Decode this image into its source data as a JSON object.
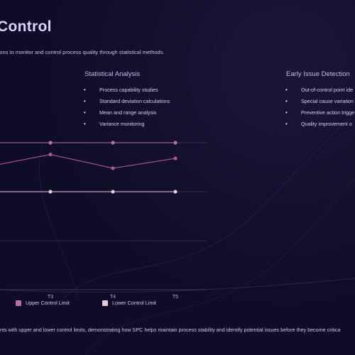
{
  "slide": {
    "title": "Control",
    "subtitle": "izations to monitor and control process quality through statistical methods.",
    "caption": "ents with upper and lower control limits, demonstrating how SPC helps maintain process stability and identify potential issues before they become critica"
  },
  "sections": [
    {
      "heading": "Statistical Analysis",
      "items": [
        "Process capability studies",
        "Standard deviation calculations",
        "Mean and range analysis",
        "Variance monitoring"
      ]
    },
    {
      "heading": "Early Issue Detection",
      "items": [
        "Out-of-control point ide",
        "Special cause variation",
        "Preventive action trigge",
        "Quality improvement o"
      ]
    }
  ],
  "colors": {
    "background": "#0e0c26",
    "process_line": "#b0549a",
    "upper_limit": "#b86ea8",
    "lower_limit": "#e8c8dc",
    "grid": "#3a3858"
  },
  "chart_data": {
    "type": "line",
    "categories": [
      "T3",
      "T4",
      "T5"
    ],
    "series": [
      {
        "name": "Upper Control Limit",
        "values": [
          1.0,
          1.0,
          1.0
        ]
      },
      {
        "name": "Lower Control Limit",
        "values": [
          0.5,
          0.5,
          0.5
        ]
      },
      {
        "name": "",
        "values": [
          0.88,
          0.74,
          0.84
        ]
      }
    ],
    "legend": {
      "position": "bottom",
      "entries": [
        "Upper Control Limit",
        "Lower Control Limit"
      ]
    },
    "grid": true
  }
}
